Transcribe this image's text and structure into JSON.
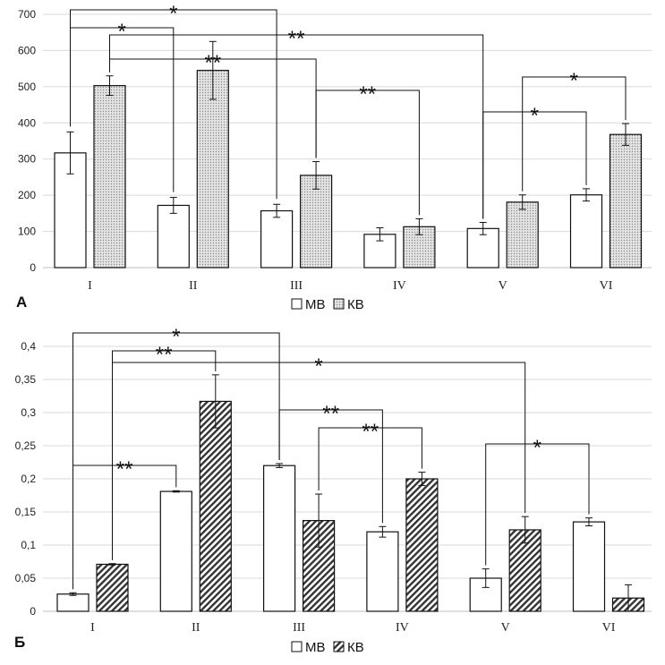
{
  "chart_data": [
    {
      "panel_label": "А",
      "type": "bar",
      "categories": [
        "I",
        "II",
        "III",
        "IV",
        "V",
        "VI"
      ],
      "ylim": [
        0,
        700
      ],
      "yticks": [
        "0",
        "100",
        "200",
        "300",
        "400",
        "500",
        "600",
        "700"
      ],
      "grid": true,
      "series": [
        {
          "name": "МВ",
          "values": [
            317,
            172,
            157,
            92,
            108,
            201
          ],
          "errors": [
            58,
            22,
            18,
            18,
            17,
            17
          ]
        },
        {
          "name": "КВ",
          "values": [
            503,
            545,
            255,
            113,
            181,
            368
          ],
          "errors": [
            27,
            80,
            38,
            22,
            20,
            30
          ]
        }
      ],
      "brackets": [
        {
          "from": [
            0,
            0
          ],
          "to": [
            2,
            0
          ],
          "label": "*"
        },
        {
          "from": [
            0,
            0
          ],
          "to": [
            1,
            0
          ],
          "label": "*"
        },
        {
          "from": [
            0,
            1
          ],
          "to": [
            4,
            0
          ],
          "label": "**"
        },
        {
          "from": [
            0,
            1
          ],
          "to": [
            2,
            1
          ],
          "label": "**"
        },
        {
          "from": [
            2,
            1
          ],
          "to": [
            3,
            1
          ],
          "label": "**"
        },
        {
          "from": [
            4,
            1
          ],
          "to": [
            5,
            1
          ],
          "label": "*"
        },
        {
          "from": [
            4,
            0
          ],
          "to": [
            5,
            0
          ],
          "label": "*"
        }
      ],
      "legend": [
        "МВ",
        "КВ"
      ]
    },
    {
      "panel_label": "Б",
      "type": "bar",
      "categories": [
        "I",
        "II",
        "III",
        "IV",
        "V",
        "VI"
      ],
      "ylim": [
        0,
        0.4
      ],
      "yticks": [
        "0",
        "0,05",
        "0,1",
        "0,15",
        "0,2",
        "0,25",
        "0,3",
        "0,35",
        "0,4"
      ],
      "grid": true,
      "series": [
        {
          "name": "МВ",
          "values": [
            0.026,
            0.181,
            0.22,
            0.12,
            0.05,
            0.135
          ],
          "errors": [
            0.002,
            0.001,
            0.003,
            0.008,
            0.014,
            0.006
          ]
        },
        {
          "name": "КВ",
          "values": [
            0.071,
            0.317,
            0.137,
            0.2,
            0.123,
            0.02
          ],
          "errors": [
            0.001,
            0.04,
            0.04,
            0.01,
            0.02,
            0.02
          ]
        }
      ],
      "brackets": [
        {
          "from": [
            0,
            0
          ],
          "to": [
            2,
            0
          ],
          "label": "*"
        },
        {
          "from": [
            0,
            1
          ],
          "to": [
            1,
            1
          ],
          "label": "**"
        },
        {
          "from": [
            0,
            1
          ],
          "to": [
            4,
            1
          ],
          "label": "*"
        },
        {
          "from": [
            0,
            0
          ],
          "to": [
            1,
            0
          ],
          "label": "**"
        },
        {
          "from": [
            2,
            0
          ],
          "to": [
            3,
            0
          ],
          "label": "**"
        },
        {
          "from": [
            2,
            1
          ],
          "to": [
            3,
            1
          ],
          "label": "**"
        },
        {
          "from": [
            4,
            0
          ],
          "to": [
            5,
            0
          ],
          "label": "*"
        }
      ],
      "legend": [
        "МВ",
        "КВ"
      ]
    }
  ]
}
